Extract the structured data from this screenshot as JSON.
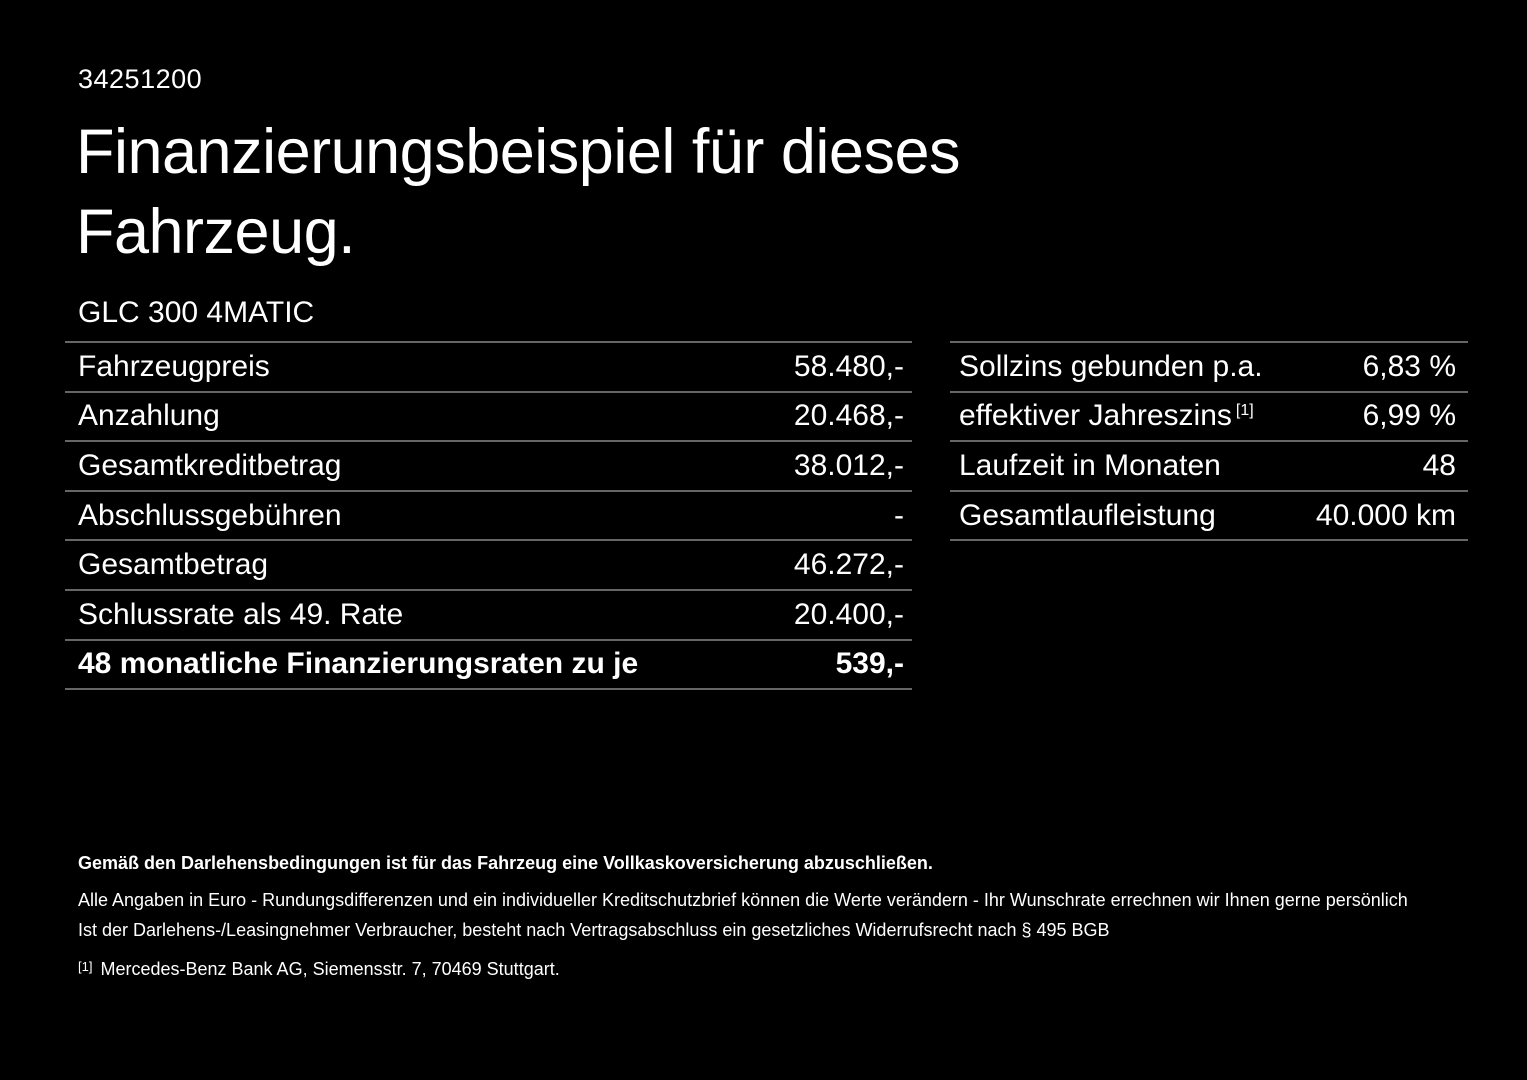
{
  "page": {
    "background": "#000000",
    "text_color": "#ffffff",
    "divider_color": "#666666"
  },
  "header": {
    "doc_number": "34251200",
    "title": "Finanzierungsbeispiel für dieses Fahrzeug.",
    "model": "GLC 300 4MATIC"
  },
  "finance_table": {
    "rows": [
      {
        "label": "Fahrzeugpreis",
        "value": "58.480,-"
      },
      {
        "label": "Anzahlung",
        "value": "20.468,-"
      },
      {
        "label": "Gesamtkreditbetrag",
        "value": "38.012,-"
      },
      {
        "label": "Abschlussgebühren",
        "value": "-"
      },
      {
        "label": "Gesamtbetrag",
        "value": "46.272,-"
      },
      {
        "label": "Schlussrate als 49. Rate",
        "value": "20.400,-"
      },
      {
        "label": "48 monatliche Finanzierungsraten zu je",
        "value": "539,-"
      }
    ]
  },
  "conditions_table": {
    "rows": [
      {
        "label": "Sollzins gebunden p.a.",
        "value": "6,83 %"
      },
      {
        "label": "effektiver Jahreszins",
        "footnote": "[1]",
        "value": "6,99 %"
      },
      {
        "label": "Laufzeit in Monaten",
        "value": "48"
      },
      {
        "label": "Gesamtlaufleistung",
        "value": "40.000 km"
      }
    ]
  },
  "footer": {
    "insurance_note": "Gemäß den Darlehensbedingungen ist für das Fahrzeug eine Vollkaskoversicherung abzuschließen.",
    "euro_note": "Alle Angaben in Euro - Rundungsdifferenzen und ein individueller Kreditschutzbrief können die Werte verändern - Ihr Wunschrate errechnen wir Ihnen gerne persönlich",
    "withdrawal_note": "Ist der Darlehens-/Leasingnehmer Verbraucher, besteht nach Vertragsabschluss ein gesetzliches Widerrufsrecht nach § 495 BGB",
    "footnote_marker": "[1]",
    "footnote_text": "Mercedes-Benz Bank AG, Siemensstr. 7, 70469 Stuttgart."
  }
}
